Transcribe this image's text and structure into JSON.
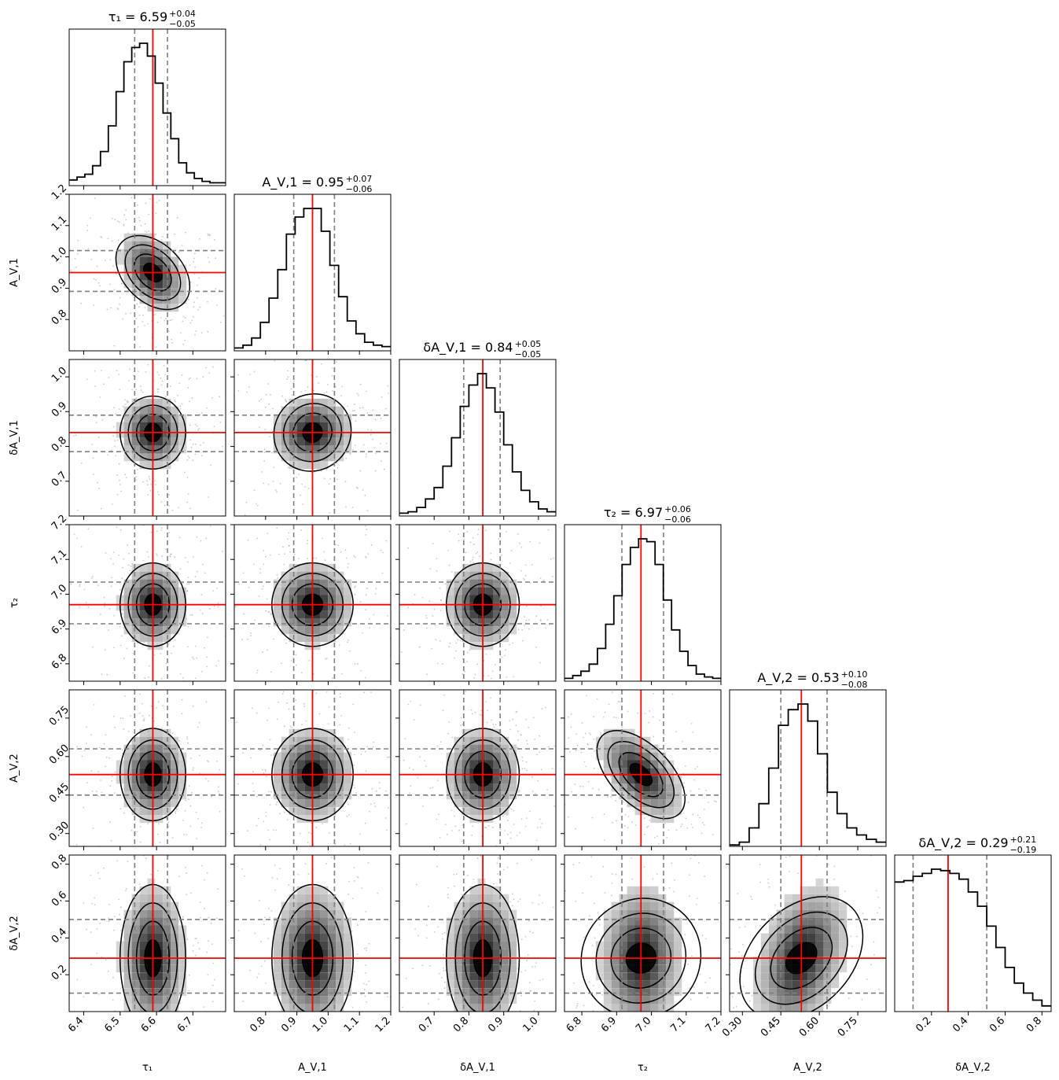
{
  "chart_data": {
    "type": "corner",
    "description_labels": {
      "contour_levels": 4
    },
    "colors": {
      "truth": "#ff0000",
      "quantile": "#808080",
      "hist": "#000000",
      "scatter": "#999999",
      "density_dark": "#000000",
      "density_light": "#f2f2f2"
    },
    "parameters": [
      {
        "name": "tau_1",
        "axis_label": "τ₁",
        "title": "τ₁ = 6.59",
        "title_base": "τ₁ = 6.59",
        "err_plus": "+0.04",
        "err_minus": "−0.05",
        "median": 6.59,
        "q16": 6.54,
        "q84": 6.63,
        "range": [
          6.36,
          6.79
        ],
        "ticks": [
          6.4,
          6.5,
          6.6,
          6.7
        ],
        "tick_labels": [
          "6.4",
          "6.5",
          "6.6",
          "6.7"
        ],
        "hist": [
          0.04,
          0.06,
          0.08,
          0.14,
          0.24,
          0.42,
          0.66,
          0.87,
          0.97,
          1.0,
          0.91,
          0.72,
          0.51,
          0.33,
          0.16,
          0.09,
          0.05,
          0.03,
          0.02,
          0.02
        ]
      },
      {
        "name": "A_V1",
        "axis_label": "A_V,1",
        "title": "A_V,1 = 0.95",
        "title_base": "A_V,1 = 0.95",
        "err_plus": "+0.07",
        "err_minus": "−0.06",
        "median": 0.95,
        "q16": 0.89,
        "q84": 1.02,
        "range": [
          0.7,
          1.2
        ],
        "ticks": [
          0.8,
          0.9,
          1.0,
          1.1,
          1.2
        ],
        "tick_labels": [
          "0.8",
          "0.9",
          "1.0",
          "1.1",
          "1.2"
        ],
        "hist": [
          0.02,
          0.04,
          0.09,
          0.2,
          0.37,
          0.57,
          0.82,
          0.94,
          1.0,
          1.0,
          0.84,
          0.6,
          0.38,
          0.21,
          0.12,
          0.06,
          0.04,
          0.03
        ]
      },
      {
        "name": "dA_V1",
        "axis_label": "δA_V,1",
        "title": "δA_V,1 = 0.84",
        "title_base": "δA_V,1 = 0.84",
        "err_plus": "+0.05",
        "err_minus": "−0.05",
        "median": 0.84,
        "q16": 0.785,
        "q84": 0.89,
        "range": [
          0.6,
          1.05
        ],
        "ticks": [
          0.7,
          0.8,
          0.9,
          1.0
        ],
        "tick_labels": [
          "0.7",
          "0.8",
          "0.9",
          "1.0"
        ],
        "hist": [
          0.02,
          0.03,
          0.06,
          0.12,
          0.2,
          0.35,
          0.55,
          0.77,
          0.92,
          1.0,
          0.9,
          0.73,
          0.5,
          0.31,
          0.18,
          0.1,
          0.05,
          0.03
        ]
      },
      {
        "name": "tau_2",
        "axis_label": "τ₂",
        "title": "τ₂ = 6.97",
        "title_base": "τ₂ = 6.97",
        "err_plus": "+0.06",
        "err_minus": "−0.06",
        "median": 6.97,
        "q16": 6.915,
        "q84": 7.035,
        "range": [
          6.75,
          7.2
        ],
        "ticks": [
          6.8,
          6.9,
          7.0,
          7.1,
          7.2
        ],
        "tick_labels": [
          "6.8",
          "6.9",
          "7.0",
          "7.1",
          "7.2"
        ],
        "hist": [
          0.02,
          0.04,
          0.07,
          0.12,
          0.23,
          0.4,
          0.6,
          0.82,
          0.94,
          1.0,
          0.98,
          0.82,
          0.57,
          0.36,
          0.21,
          0.11,
          0.05,
          0.03,
          0.02
        ]
      },
      {
        "name": "A_V2",
        "axis_label": "A_V,2",
        "title": "A_V,2 = 0.53",
        "title_base": "A_V,2 = 0.53",
        "err_plus": "+0.10",
        "err_minus": "−0.08",
        "median": 0.53,
        "q16": 0.45,
        "q84": 0.63,
        "range": [
          0.25,
          0.86
        ],
        "ticks": [
          0.3,
          0.45,
          0.6,
          0.75
        ],
        "tick_labels": [
          "0.30",
          "0.45",
          "0.60",
          "0.75"
        ],
        "hist": [
          0.01,
          0.03,
          0.13,
          0.3,
          0.55,
          0.85,
          0.96,
          1.0,
          0.88,
          0.65,
          0.38,
          0.23,
          0.13,
          0.08,
          0.05,
          0.03
        ]
      },
      {
        "name": "dA_V2",
        "axis_label": "δA_V,2",
        "title": "δA_V,2 = 0.29",
        "title_base": "δA_V,2 = 0.29",
        "err_plus": "+0.21",
        "err_minus": "−0.19",
        "median": 0.29,
        "q16": 0.1,
        "q84": 0.5,
        "range": [
          0.0,
          0.85
        ],
        "ticks": [
          0.2,
          0.4,
          0.6,
          0.8
        ],
        "tick_labels": [
          "0.2",
          "0.4",
          "0.6",
          "0.8"
        ],
        "hist": [
          0.91,
          0.92,
          0.95,
          0.97,
          1.0,
          0.99,
          0.97,
          0.93,
          0.84,
          0.74,
          0.6,
          0.45,
          0.31,
          0.2,
          0.13,
          0.08,
          0.04
        ]
      }
    ],
    "correlations": {
      "1,0": -0.38,
      "2,0": 0.0,
      "2,1": 0.05,
      "3,0": 0.0,
      "3,1": 0.0,
      "3,2": 0.0,
      "4,0": 0.0,
      "4,1": 0.0,
      "4,2": 0.0,
      "4,3": -0.55,
      "5,0": 0.0,
      "5,1": 0.0,
      "5,2": 0.0,
      "5,3": 0.05,
      "5,4": 0.35
    }
  }
}
